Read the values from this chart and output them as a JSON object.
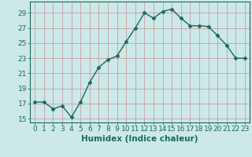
{
  "x": [
    0,
    1,
    2,
    3,
    4,
    5,
    6,
    7,
    8,
    9,
    10,
    11,
    12,
    13,
    14,
    15,
    16,
    17,
    18,
    19,
    20,
    21,
    22,
    23
  ],
  "y": [
    17.2,
    17.2,
    16.3,
    16.7,
    15.2,
    17.2,
    19.8,
    21.8,
    22.8,
    23.3,
    25.2,
    27.0,
    29.0,
    28.3,
    29.2,
    29.5,
    28.3,
    27.3,
    27.3,
    27.2,
    26.0,
    24.7,
    23.0,
    23.0
  ],
  "line_color": "#1a6b5a",
  "marker": "D",
  "marker_size": 2.5,
  "bg_color": "#cce8e8",
  "grid_color": "#c8a0a0",
  "xlabel": "Humidex (Indice chaleur)",
  "xlim": [
    -0.5,
    23.5
  ],
  "ylim": [
    14.5,
    30.5
  ],
  "yticks": [
    15,
    17,
    19,
    21,
    23,
    25,
    27,
    29
  ],
  "xticks": [
    0,
    1,
    2,
    3,
    4,
    5,
    6,
    7,
    8,
    9,
    10,
    11,
    12,
    13,
    14,
    15,
    16,
    17,
    18,
    19,
    20,
    21,
    22,
    23
  ],
  "tick_fontsize": 6.5,
  "xlabel_fontsize": 7.5,
  "line_width": 1.0
}
